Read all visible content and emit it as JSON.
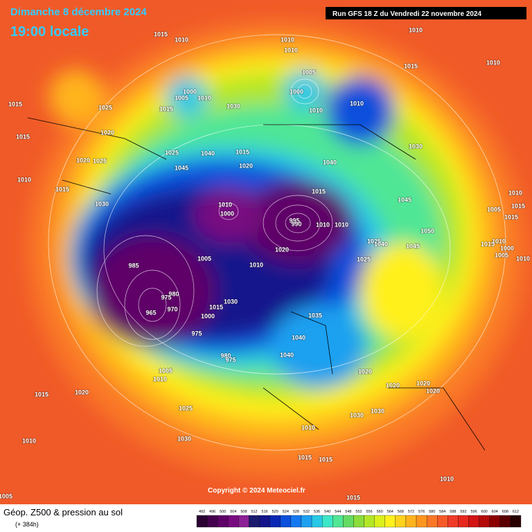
{
  "header": {
    "date": "Dimanche 8 décembre 2024",
    "time": "19:00 locale",
    "run": "Run GFS 18 Z du Vendredi 22 novembre 2024"
  },
  "pressure_labels": [
    1015,
    1010,
    1010,
    1010,
    1010,
    1015,
    1010,
    1015,
    1025,
    1005,
    1000,
    1000,
    1005,
    1010,
    1015,
    1030,
    1010,
    1010,
    1020,
    1015,
    1030,
    1025,
    1040,
    1015,
    1025,
    1020,
    1045,
    1020,
    1040,
    1010,
    1015,
    1015,
    1030,
    1045,
    1010,
    1005,
    1015,
    1015,
    1010,
    1000,
    995,
    990,
    1010,
    1010,
    1050,
    1025,
    1040,
    1045,
    1015,
    1010,
    1000,
    1005,
    1010,
    1020,
    1005,
    1025,
    1010,
    985,
    980,
    970,
    975,
    965,
    1015,
    1030,
    1000,
    975,
    1035,
    1040,
    1040,
    980,
    975,
    1020,
    1020,
    1020,
    1020,
    1005,
    1010,
    1020,
    1015,
    1025,
    1030,
    1030,
    1010,
    1030,
    1010,
    1015,
    1015,
    1010,
    1005,
    1015
  ],
  "copyright": "Copyright © 2024 Meteociel.fr",
  "legend": {
    "title": "Géop. Z500 & pression au sol",
    "lead": "(+ 384h)",
    "values": [
      492,
      496,
      500,
      504,
      508,
      512,
      516,
      520,
      524,
      528,
      532,
      536,
      540,
      544,
      548,
      552,
      556,
      560,
      564,
      568,
      572,
      576,
      580,
      584,
      588,
      592,
      596,
      600,
      604,
      608,
      612
    ],
    "colors": [
      "#2a0032",
      "#44004e",
      "#5e0068",
      "#780a80",
      "#8c2096",
      "#1a1a6e",
      "#14148c",
      "#0a28b4",
      "#0a50dc",
      "#1478f0",
      "#1ea0f0",
      "#28c8e6",
      "#3ce6c8",
      "#50e696",
      "#64dc64",
      "#8cdc3c",
      "#b4e628",
      "#dcf01e",
      "#fff01e",
      "#ffd21e",
      "#ffb41e",
      "#ff961e",
      "#fa7828",
      "#f55a28",
      "#f03c28",
      "#e6281e",
      "#d21414",
      "#b40a0a",
      "#8c0000",
      "#5a0000",
      "#280000"
    ]
  }
}
